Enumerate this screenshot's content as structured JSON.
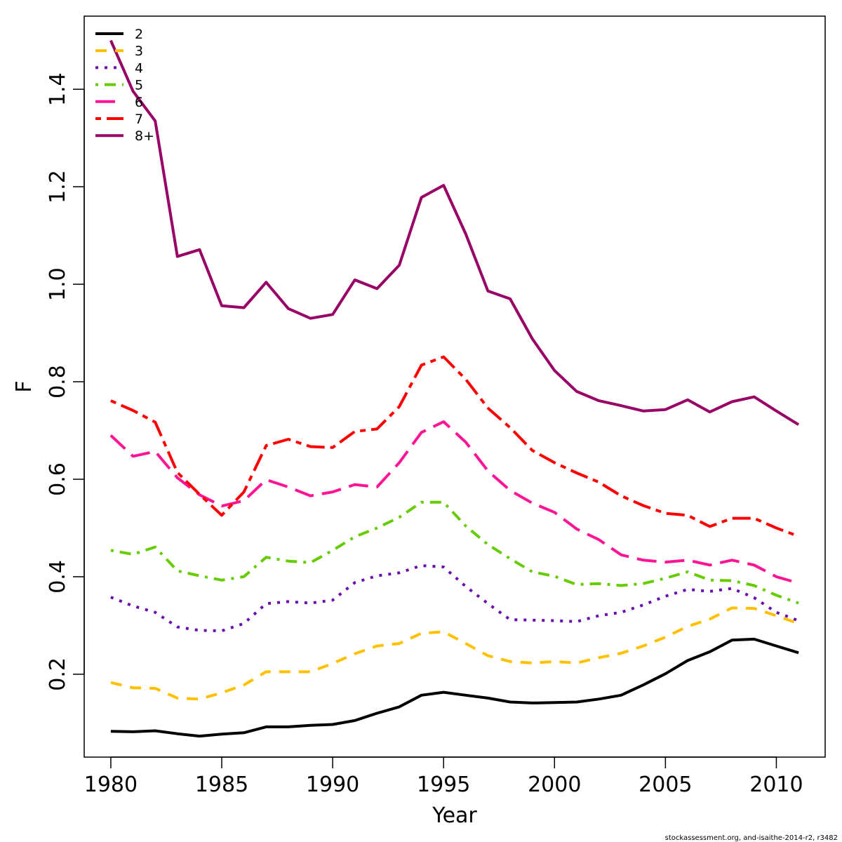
{
  "chart_data": {
    "type": "line",
    "xlabel": "Year",
    "ylabel": "F",
    "xlim": [
      1978.8,
      2012.2
    ],
    "ylim": [
      0.03,
      1.55
    ],
    "xticks": [
      1980,
      1985,
      1990,
      1995,
      2000,
      2005,
      2010
    ],
    "yticks": [
      0.2,
      0.4,
      0.6,
      0.8,
      1.0,
      1.2,
      1.4
    ],
    "xtick_labels": [
      "1980",
      "1985",
      "1990",
      "1995",
      "2000",
      "2005",
      "2010"
    ],
    "ytick_labels": [
      "0.2",
      "0.4",
      "0.6",
      "0.8",
      "1.0",
      "1.2",
      "1.4"
    ],
    "grid": false,
    "legend_position": "top-left",
    "x": [
      1980,
      1981,
      1982,
      1983,
      1984,
      1985,
      1986,
      1987,
      1988,
      1989,
      1990,
      1991,
      1992,
      1993,
      1994,
      1995,
      1996,
      1997,
      1998,
      1999,
      2000,
      2001,
      2002,
      2003,
      2004,
      2005,
      2006,
      2007,
      2008,
      2009,
      2010,
      2011
    ],
    "series": [
      {
        "name": "2",
        "color": "#000000",
        "dash": "solid",
        "values": [
          0.083,
          0.082,
          0.084,
          0.078,
          0.073,
          0.077,
          0.08,
          0.092,
          0.092,
          0.095,
          0.097,
          0.105,
          0.12,
          0.133,
          0.157,
          0.163,
          0.157,
          0.151,
          0.143,
          0.141,
          0.142,
          0.143,
          0.149,
          0.157,
          0.178,
          0.201,
          0.228,
          0.246,
          0.27,
          0.272,
          0.258,
          0.244
        ]
      },
      {
        "name": "3",
        "color": "#FFC000",
        "dash": "dashed",
        "values": [
          0.183,
          0.172,
          0.171,
          0.151,
          0.149,
          0.162,
          0.178,
          0.205,
          0.205,
          0.205,
          0.222,
          0.242,
          0.258,
          0.263,
          0.284,
          0.287,
          0.263,
          0.238,
          0.226,
          0.223,
          0.226,
          0.223,
          0.234,
          0.243,
          0.258,
          0.276,
          0.298,
          0.313,
          0.336,
          0.335,
          0.32,
          0.304
        ]
      },
      {
        "name": "4",
        "color": "#6A0DAD",
        "dash": "dotted",
        "values": [
          0.358,
          0.34,
          0.327,
          0.297,
          0.29,
          0.289,
          0.304,
          0.345,
          0.349,
          0.346,
          0.352,
          0.388,
          0.402,
          0.408,
          0.423,
          0.42,
          0.38,
          0.345,
          0.312,
          0.311,
          0.31,
          0.308,
          0.32,
          0.327,
          0.342,
          0.36,
          0.374,
          0.37,
          0.376,
          0.357,
          0.327,
          0.31
        ]
      },
      {
        "name": "5",
        "color": "#66CC00",
        "dash": "dotdash",
        "values": [
          0.454,
          0.446,
          0.461,
          0.412,
          0.402,
          0.393,
          0.4,
          0.44,
          0.432,
          0.429,
          0.454,
          0.482,
          0.5,
          0.522,
          0.553,
          0.553,
          0.504,
          0.466,
          0.437,
          0.41,
          0.401,
          0.384,
          0.386,
          0.382,
          0.386,
          0.397,
          0.41,
          0.393,
          0.392,
          0.382,
          0.362,
          0.346
        ]
      },
      {
        "name": "6",
        "color": "#FF1493",
        "dash": "longdash",
        "values": [
          0.69,
          0.647,
          0.657,
          0.603,
          0.568,
          0.545,
          0.556,
          0.599,
          0.584,
          0.566,
          0.574,
          0.589,
          0.584,
          0.634,
          0.696,
          0.718,
          0.676,
          0.617,
          0.577,
          0.551,
          0.532,
          0.498,
          0.476,
          0.445,
          0.434,
          0.43,
          0.434,
          0.424,
          0.434,
          0.424,
          0.4,
          0.387
        ]
      },
      {
        "name": "7",
        "color": "#FF0000",
        "dash": "twodash",
        "values": [
          0.761,
          0.741,
          0.717,
          0.614,
          0.569,
          0.526,
          0.574,
          0.669,
          0.682,
          0.667,
          0.665,
          0.698,
          0.703,
          0.749,
          0.834,
          0.851,
          0.805,
          0.746,
          0.706,
          0.659,
          0.634,
          0.613,
          0.594,
          0.566,
          0.546,
          0.53,
          0.526,
          0.503,
          0.52,
          0.52,
          0.5,
          0.483
        ]
      },
      {
        "name": "8+",
        "color": "#990066",
        "dash": "solid",
        "values": [
          1.5,
          1.396,
          1.335,
          1.057,
          1.071,
          0.956,
          0.952,
          1.004,
          0.95,
          0.93,
          0.938,
          1.009,
          0.991,
          1.039,
          1.178,
          1.203,
          1.103,
          0.986,
          0.97,
          0.888,
          0.823,
          0.78,
          0.761,
          0.751,
          0.74,
          0.743,
          0.763,
          0.738,
          0.759,
          0.769,
          0.74,
          0.712
        ]
      }
    ]
  },
  "footer": "stockassessment.org, and-isaithe-2014-r2, r3482"
}
